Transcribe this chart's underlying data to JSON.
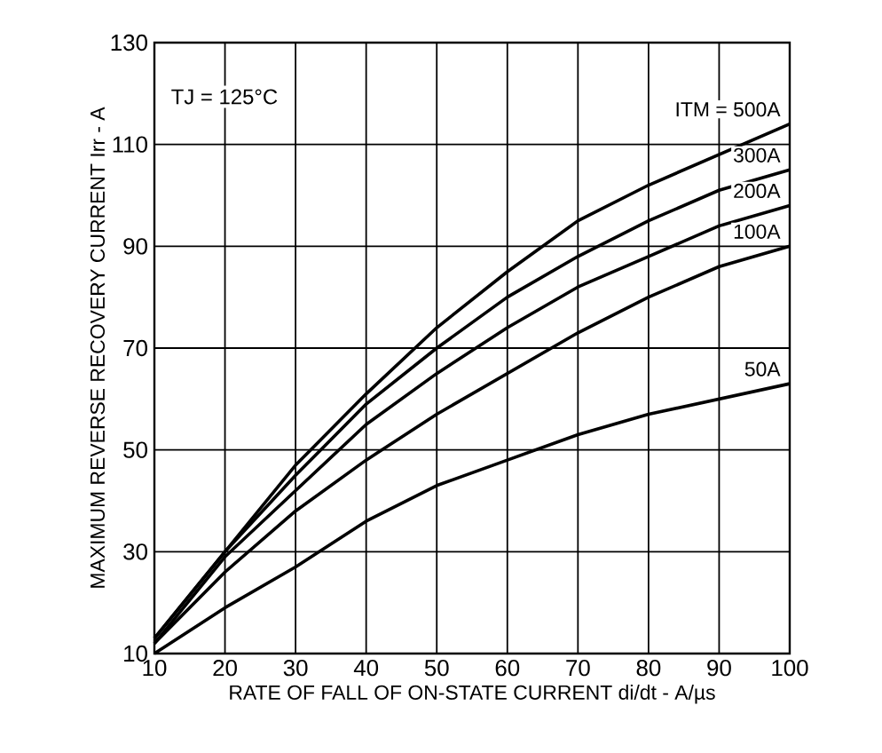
{
  "chart_data": {
    "type": "line",
    "xlabel": "RATE OF FALL OF ON-STATE CURRENT di/dt - A/µs",
    "ylabel": "MAXIMUM REVERSE RECOVERY CURRENT Irr - A",
    "x": [
      10,
      20,
      30,
      40,
      50,
      60,
      70,
      80,
      90,
      100
    ],
    "series": [
      {
        "name": "ITM = 500A",
        "color": "#000000",
        "values": [
          13,
          30,
          47,
          61,
          74,
          85,
          95,
          102,
          108,
          114
        ]
      },
      {
        "name": "300A",
        "color": "#000000",
        "values": [
          13,
          30,
          45,
          59,
          70,
          80,
          88,
          95,
          101,
          105
        ]
      },
      {
        "name": "200A",
        "color": "#000000",
        "values": [
          12,
          29,
          42,
          55,
          65,
          74,
          82,
          88,
          94,
          98
        ]
      },
      {
        "name": "100A",
        "color": "#000000",
        "values": [
          12,
          26,
          38,
          48,
          57,
          65,
          73,
          80,
          86,
          90
        ]
      },
      {
        "name": "50A",
        "color": "#000000",
        "values": [
          10,
          19,
          27,
          36,
          43,
          48,
          53,
          57,
          60,
          63
        ]
      }
    ],
    "annotations": [
      "TJ = 125°C"
    ],
    "xlim": [
      10,
      100
    ],
    "ylim": [
      10,
      130
    ],
    "xticks": [
      10,
      20,
      30,
      40,
      50,
      60,
      70,
      80,
      90,
      100
    ],
    "yticks": [
      10,
      30,
      50,
      70,
      90,
      110,
      130
    ],
    "grid": true,
    "marker": "none",
    "line_style": "solid"
  }
}
